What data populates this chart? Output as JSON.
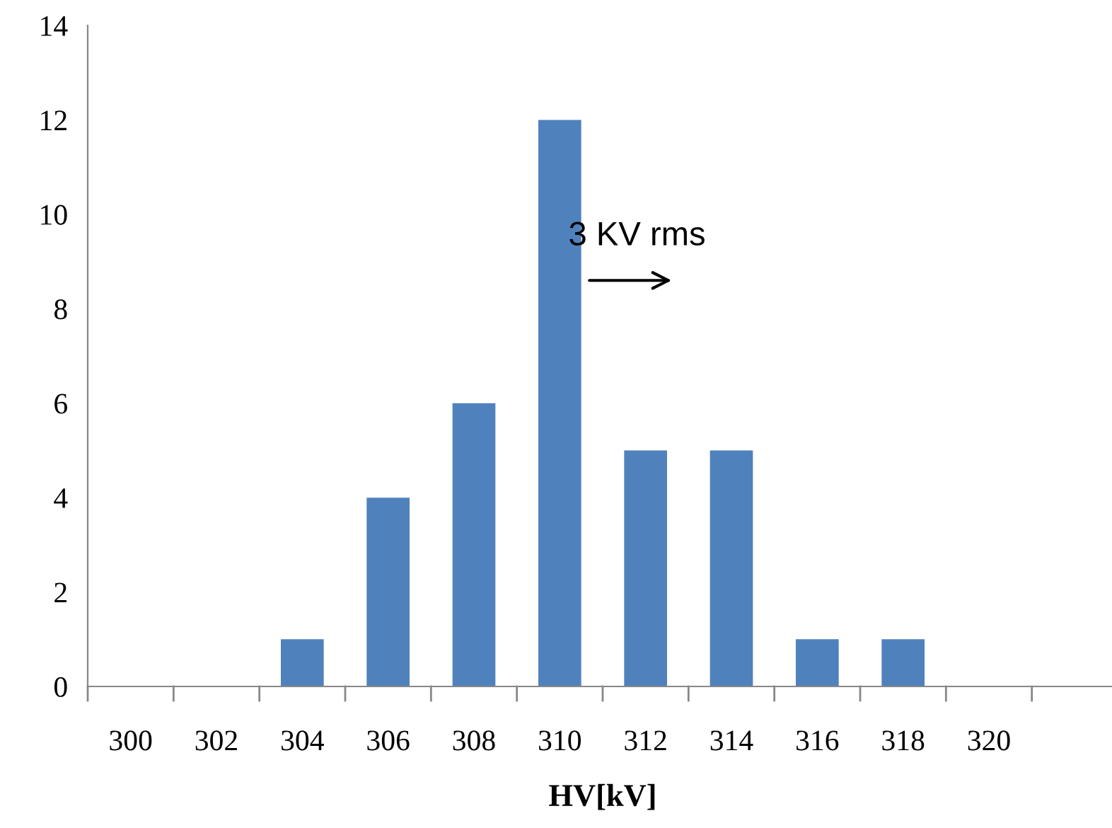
{
  "chart_data": {
    "type": "bar",
    "xlabel": "HV[kV]",
    "categories": [
      "300",
      "302",
      "304",
      "306",
      "308",
      "310",
      "312",
      "314",
      "316",
      "318",
      "320",
      null
    ],
    "values": [
      0,
      0,
      1,
      4,
      6,
      12,
      5,
      5,
      1,
      1,
      0,
      0
    ],
    "color": "#4f81bd",
    "ylim": [
      0,
      14
    ],
    "yticks": [
      0,
      2,
      4,
      6,
      8,
      10,
      12,
      14
    ],
    "annotations": [
      "3 KV rms"
    ],
    "grid": false,
    "legend": false
  }
}
